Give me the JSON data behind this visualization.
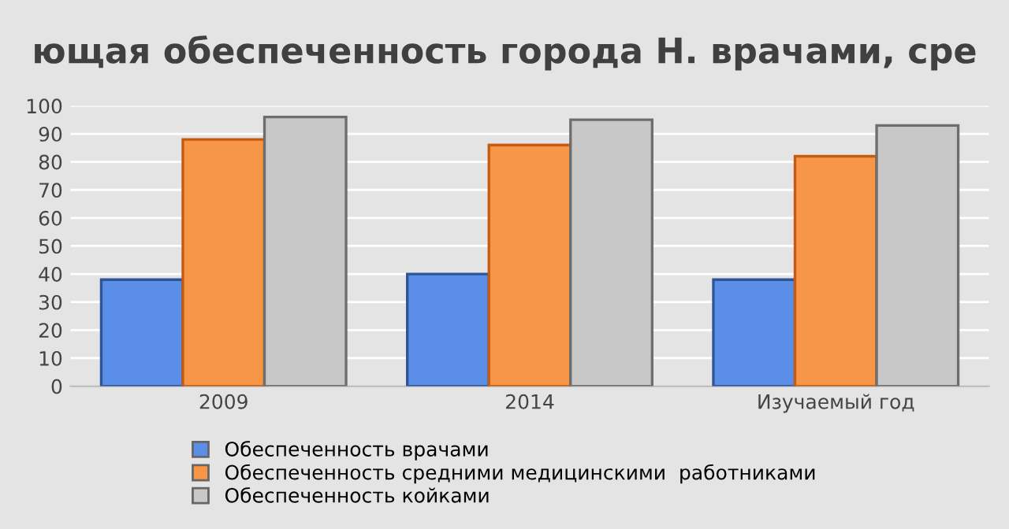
{
  "chart_data": {
    "type": "bar",
    "title": "ющая обеспеченность города Н. врачами, сре",
    "categories": [
      "2009",
      "2014",
      "Изучаемый год"
    ],
    "series": [
      {
        "name": "Обеспеченность врачами",
        "color": "#5b8ee6",
        "values": [
          38,
          40,
          38
        ]
      },
      {
        "name": "Обеспеченность средними медицинскими  работниками",
        "color": "#f79646",
        "values": [
          88,
          86,
          82
        ]
      },
      {
        "name": "Обеспеченность койками",
        "color": "#c8c8c8",
        "values": [
          96,
          95,
          93
        ]
      }
    ],
    "ylim": [
      0,
      100
    ],
    "yticks": [
      0,
      10,
      20,
      30,
      40,
      50,
      60,
      70,
      80,
      90,
      100
    ],
    "grid": "y",
    "legend": "bottom"
  }
}
